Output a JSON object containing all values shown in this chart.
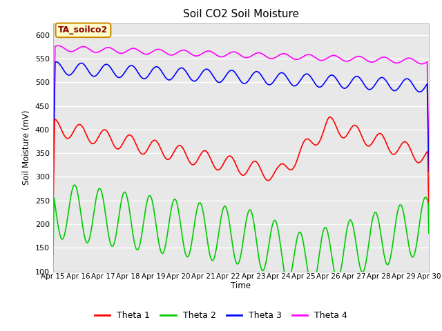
{
  "title": "Soil CO2 Soil Moisture",
  "ylabel": "Soil Moisture (mV)",
  "xlabel": "Time",
  "annotation": "TA_soilco2",
  "plot_bg_color": "#e8e8e8",
  "fig_bg_color": "#ffffff",
  "legend_labels": [
    "Theta 1",
    "Theta 2",
    "Theta 3",
    "Theta 4"
  ],
  "legend_colors": [
    "#ff0000",
    "#00cc00",
    "#0000ff",
    "#ff00ff"
  ],
  "xlim": [
    0,
    360
  ],
  "ylim": [
    100,
    625
  ],
  "yticks": [
    100,
    150,
    200,
    250,
    300,
    350,
    400,
    450,
    500,
    550,
    600
  ],
  "xtick_labels": [
    "Apr 15",
    "Apr 16",
    "Apr 17",
    "Apr 18",
    "Apr 19",
    "Apr 20",
    "Apr 21",
    "Apr 22",
    "Apr 23",
    "Apr 24",
    "Apr 25",
    "Apr 26",
    "Apr 27",
    "Apr 28",
    "Apr 29",
    "Apr 30"
  ],
  "xtick_positions": [
    0,
    24,
    48,
    72,
    96,
    120,
    144,
    168,
    192,
    216,
    240,
    264,
    288,
    312,
    336,
    360
  ]
}
